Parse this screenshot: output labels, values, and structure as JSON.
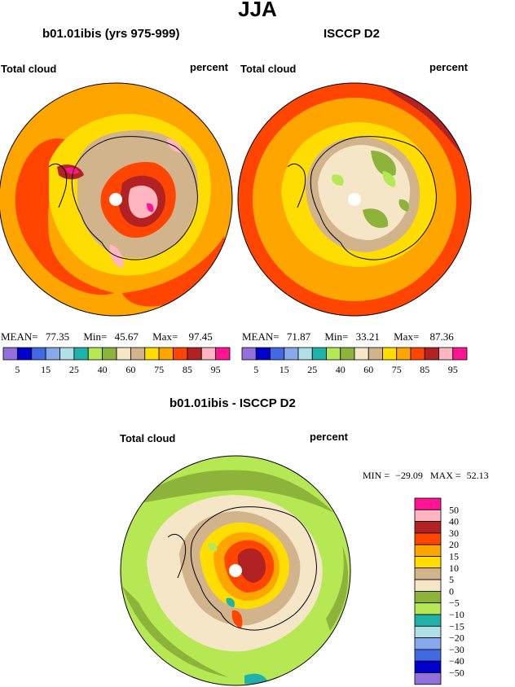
{
  "header": {
    "title": "JJA"
  },
  "panels": [
    {
      "title": "b01.01ibis (yrs 975-999)",
      "variable": "Total cloud",
      "units": "percent",
      "stats": {
        "mean_label": "MEAN=",
        "mean": "77.35",
        "min_label": "Min=",
        "min": "45.67",
        "max_label": "Max=",
        "max": "97.45"
      }
    },
    {
      "title": "ISCCP D2",
      "variable": "Total cloud",
      "units": "percent",
      "stats": {
        "mean_label": "MEAN=",
        "mean": "71.87",
        "min_label": "Min=",
        "min": "33.21",
        "max_label": "Max=",
        "max": "87.36"
      }
    },
    {
      "title": "b01.01ibis - ISCCP D2",
      "variable": "Total cloud",
      "units": "percent",
      "stats": {
        "min_label": "MIN =",
        "min": "−29.09",
        "max_label": "MAX =",
        "max": "52.13"
      }
    }
  ],
  "colorbar_top": {
    "colors": [
      "#9370db",
      "#0000cd",
      "#4169e1",
      "#87a9eb",
      "#b0e0e6",
      "#20b2aa",
      "#b5e853",
      "#8db33a",
      "#f5e6c8",
      "#d2b48c",
      "#ffdd00",
      "#ffa500",
      "#ff4500",
      "#b22222",
      "#ffb6c1",
      "#ff1493"
    ],
    "labels": [
      "5",
      "15",
      "25",
      "40",
      "60",
      "75",
      "85",
      "95"
    ]
  },
  "colorbar_diff": {
    "colors": [
      "#ff1493",
      "#ffb6c1",
      "#b22222",
      "#ff4500",
      "#ffa500",
      "#ffdd00",
      "#d2b48c",
      "#f5e6c8",
      "#8db33a",
      "#b5e853",
      "#20b2aa",
      "#b0e0e6",
      "#87a9eb",
      "#4169e1",
      "#0000cd",
      "#9370db"
    ],
    "labels": [
      "50",
      "40",
      "30",
      "20",
      "15",
      "10",
      "5",
      "0",
      "−5",
      "−10",
      "−15",
      "−20",
      "−30",
      "−40",
      "−50"
    ]
  },
  "chart_data": [
    {
      "type": "heatmap",
      "projection": "south-polar-stereographic",
      "title": "b01.01ibis (yrs 975-999)",
      "field": "Total cloud",
      "units": "percent",
      "mean": 77.35,
      "min": 45.67,
      "max": 97.45,
      "contour_levels": [
        5,
        10,
        15,
        20,
        25,
        30,
        40,
        50,
        60,
        65,
        75,
        80,
        85,
        90,
        95
      ]
    },
    {
      "type": "heatmap",
      "projection": "south-polar-stereographic",
      "title": "ISCCP D2",
      "field": "Total cloud",
      "units": "percent",
      "mean": 71.87,
      "min": 33.21,
      "max": 87.36,
      "contour_levels": [
        5,
        10,
        15,
        20,
        25,
        30,
        40,
        50,
        60,
        65,
        75,
        80,
        85,
        90,
        95
      ]
    },
    {
      "type": "heatmap",
      "projection": "south-polar-stereographic",
      "title": "b01.01ibis - ISCCP D2",
      "field": "Total cloud",
      "units": "percent",
      "min": -29.09,
      "max": 52.13,
      "contour_levels": [
        -50,
        -40,
        -30,
        -20,
        -15,
        -10,
        -5,
        0,
        5,
        10,
        15,
        20,
        30,
        40,
        50
      ]
    }
  ]
}
